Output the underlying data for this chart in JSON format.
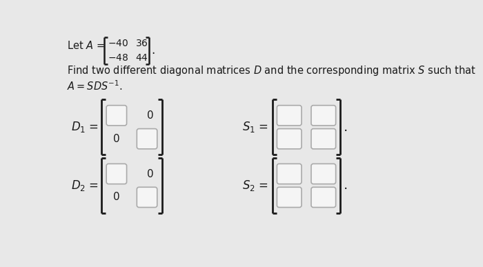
{
  "background_color": "#e8e8e8",
  "text_color": "#1a1a1a",
  "box_fill": "#f5f5f5",
  "box_edge": "#aaaaaa",
  "bracket_color": "#1a1a1a"
}
